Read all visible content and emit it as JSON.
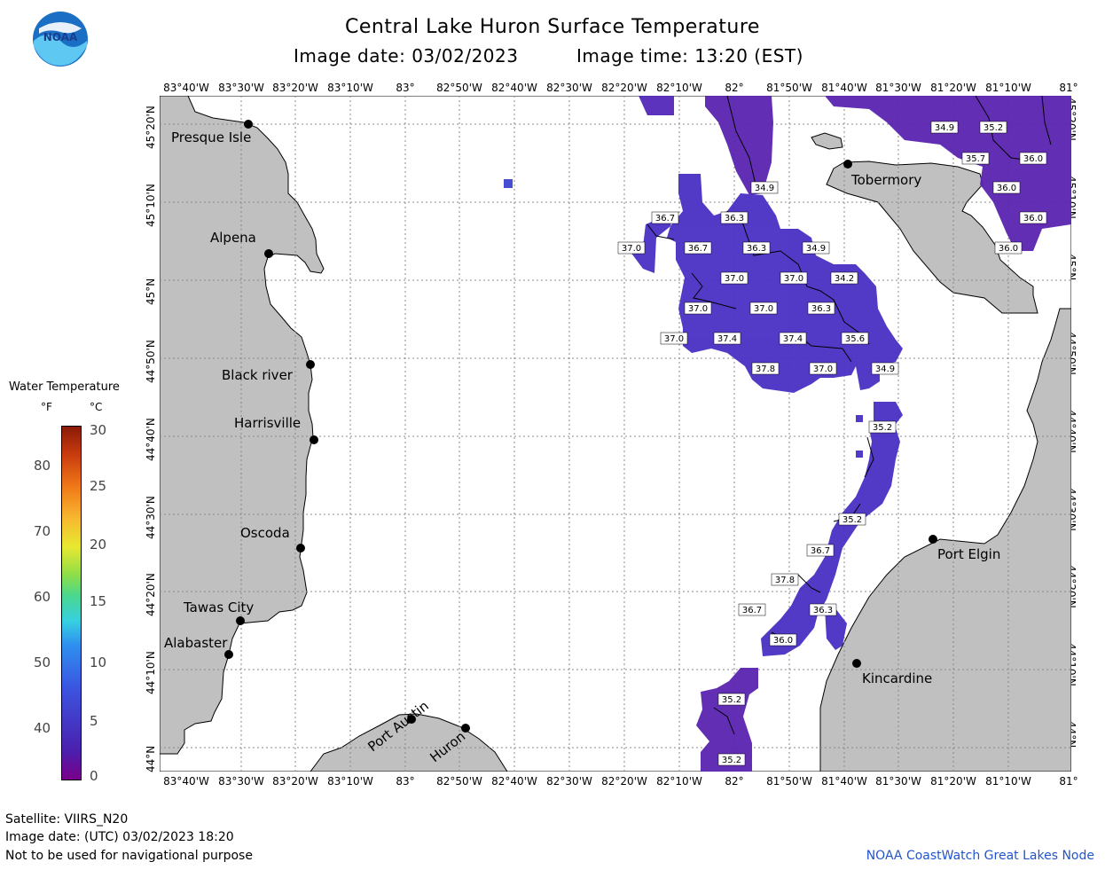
{
  "header": {
    "title": "Central Lake Huron Surface Temperature",
    "image_date": "Image date: 03/02/2023",
    "image_time": "Image time: 13:20 (EST)"
  },
  "logo": {
    "text": "NOAA",
    "colors": [
      "#1a6fc4",
      "#5ec8f2"
    ]
  },
  "axes": {
    "lon_ticks": [
      "83°40'W",
      "83°30'W",
      "83°20'W",
      "83°10'W",
      "83°",
      "82°50'W",
      "82°40'W",
      "82°30'W",
      "82°20'W",
      "82°10'W",
      "82°",
      "81°50'W",
      "81°40'W",
      "81°30'W",
      "81°20'W",
      "81°10'W",
      "81°"
    ],
    "lat_ticks": [
      "45°20'N",
      "45°10'N",
      "45°N",
      "44°50'N",
      "44°40'N",
      "44°30'N",
      "44°20'N",
      "44°10'N",
      "44°N"
    ]
  },
  "places": [
    {
      "name": "Presque Isle"
    },
    {
      "name": "Alpena"
    },
    {
      "name": "Black river"
    },
    {
      "name": "Harrisville"
    },
    {
      "name": "Oscoda"
    },
    {
      "name": "Tawas City"
    },
    {
      "name": "Alabaster"
    },
    {
      "name": "Port Austin"
    },
    {
      "name": "Huron"
    },
    {
      "name": "Tobermory"
    },
    {
      "name": "Port Elgin"
    },
    {
      "name": "Kincardine"
    }
  ],
  "temps": [
    {
      "v": "34.9"
    },
    {
      "v": "35.2"
    },
    {
      "v": "35.7"
    },
    {
      "v": "36.0"
    },
    {
      "v": "36.0"
    },
    {
      "v": "36.0"
    },
    {
      "v": "36.0"
    },
    {
      "v": "34.9"
    },
    {
      "v": "36.7"
    },
    {
      "v": "36.3"
    },
    {
      "v": "37.0"
    },
    {
      "v": "36.7"
    },
    {
      "v": "36.3"
    },
    {
      "v": "34.9"
    },
    {
      "v": "37.0"
    },
    {
      "v": "37.0"
    },
    {
      "v": "34.2"
    },
    {
      "v": "37.0"
    },
    {
      "v": "37.0"
    },
    {
      "v": "36.3"
    },
    {
      "v": "37.0"
    },
    {
      "v": "37.4"
    },
    {
      "v": "37.4"
    },
    {
      "v": "35.6"
    },
    {
      "v": "37.8"
    },
    {
      "v": "37.0"
    },
    {
      "v": "34.9"
    },
    {
      "v": "35.2"
    },
    {
      "v": "35.2"
    },
    {
      "v": "36.7"
    },
    {
      "v": "37.8"
    },
    {
      "v": "36.7"
    },
    {
      "v": "36.3"
    },
    {
      "v": "36.0"
    },
    {
      "v": "35.2"
    },
    {
      "v": "35.2"
    }
  ],
  "legend": {
    "title": "Water Temperature",
    "unit_f": "°F",
    "unit_c": "°C",
    "f_labels": [
      "80",
      "70",
      "60",
      "50",
      "40"
    ],
    "c_labels": [
      "30",
      "25",
      "20",
      "15",
      "10",
      "5",
      "0"
    ],
    "scale_c": {
      "min": 0,
      "max": 30
    }
  },
  "footer": {
    "satellite": "Satellite: VIIRS_N20",
    "utc_date": "Image date: (UTC) 03/02/2023  18:20",
    "disclaimer": "Not to be used for navigational purpose",
    "credit": "NOAA CoastWatch Great Lakes Node"
  },
  "colors": {
    "land": "#c0c0c0",
    "water": "#ffffff",
    "temp_cold": "#4a2fc4",
    "temp_mid": "#5a25b8",
    "temp_warm": "#6e1aa8"
  }
}
